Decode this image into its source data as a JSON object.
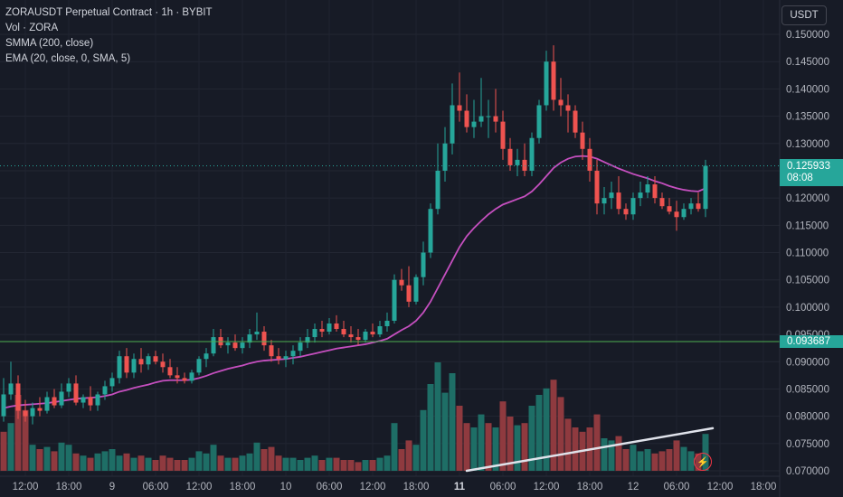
{
  "legend": {
    "title": "ZORAUSDT Perpetual Contract · 1h · BYBIT",
    "volume": "Vol · ZORA",
    "smma": "SMMA (200, close)",
    "ema": "EMA (20, close, 0, SMA, 5)"
  },
  "currency_button": "USDT",
  "last_price": {
    "value": "0.125933",
    "countdown": "08:08"
  },
  "line_level": "0.093687",
  "colors": {
    "background": "#171b26",
    "up": "#26a69a",
    "down": "#ef5350",
    "ma": "#c54fbf",
    "trendline": "#e0e3eb",
    "level_line": "#4caf50"
  },
  "icons": {
    "alert": "lightning-icon"
  },
  "chart_data": {
    "type": "candlestick",
    "price_axis": {
      "min": 0.0695,
      "max": 0.1525,
      "ticks": [
        "0.150000",
        "0.145000",
        "0.140000",
        "0.135000",
        "0.130000",
        "0.125000",
        "0.120000",
        "0.115000",
        "0.110000",
        "0.105000",
        "0.100000",
        "0.095000",
        "0.090000",
        "0.085000",
        "0.080000",
        "0.075000",
        "0.070000"
      ]
    },
    "time_axis": {
      "labels": [
        {
          "text": "12:00",
          "bar": 3
        },
        {
          "text": "18:00",
          "bar": 9
        },
        {
          "text": "9",
          "bar": 15,
          "bold": false
        },
        {
          "text": "06:00",
          "bar": 21
        },
        {
          "text": "12:00",
          "bar": 27
        },
        {
          "text": "18:00",
          "bar": 33
        },
        {
          "text": "10",
          "bar": 39
        },
        {
          "text": "06:00",
          "bar": 45
        },
        {
          "text": "12:00",
          "bar": 51
        },
        {
          "text": "18:00",
          "bar": 57
        },
        {
          "text": "11",
          "bar": 63,
          "bold": true
        },
        {
          "text": "06:00",
          "bar": 69
        },
        {
          "text": "12:00",
          "bar": 75
        },
        {
          "text": "18:00",
          "bar": 81
        },
        {
          "text": "12",
          "bar": 87
        },
        {
          "text": "06:00",
          "bar": 93
        },
        {
          "text": "12:00",
          "bar": 99
        },
        {
          "text": "18:00",
          "bar": 105
        }
      ]
    },
    "candles": [
      [
        0.08,
        0.087,
        0.079,
        0.084
      ],
      [
        0.084,
        0.09,
        0.083,
        0.086
      ],
      [
        0.086,
        0.0875,
        0.0795,
        0.081
      ],
      [
        0.081,
        0.083,
        0.079,
        0.08
      ],
      [
        0.08,
        0.0825,
        0.0785,
        0.0815
      ],
      [
        0.0815,
        0.0835,
        0.08,
        0.081
      ],
      [
        0.081,
        0.0845,
        0.0805,
        0.0835
      ],
      [
        0.0835,
        0.085,
        0.0815,
        0.082
      ],
      [
        0.082,
        0.086,
        0.0815,
        0.0845
      ],
      [
        0.0845,
        0.087,
        0.0835,
        0.086
      ],
      [
        0.086,
        0.0875,
        0.082,
        0.0825
      ],
      [
        0.0825,
        0.084,
        0.0815,
        0.0835
      ],
      [
        0.0835,
        0.0855,
        0.081,
        0.082
      ],
      [
        0.082,
        0.0845,
        0.081,
        0.084
      ],
      [
        0.084,
        0.0865,
        0.083,
        0.0855
      ],
      [
        0.0855,
        0.088,
        0.0845,
        0.087
      ],
      [
        0.087,
        0.092,
        0.086,
        0.091
      ],
      [
        0.091,
        0.0925,
        0.087,
        0.088
      ],
      [
        0.088,
        0.0915,
        0.087,
        0.0905
      ],
      [
        0.0905,
        0.0925,
        0.088,
        0.0895
      ],
      [
        0.0895,
        0.0915,
        0.0885,
        0.091
      ],
      [
        0.091,
        0.092,
        0.0895,
        0.09
      ],
      [
        0.09,
        0.0915,
        0.088,
        0.089
      ],
      [
        0.089,
        0.0905,
        0.087,
        0.0875
      ],
      [
        0.0875,
        0.089,
        0.086,
        0.087
      ],
      [
        0.087,
        0.088,
        0.086,
        0.0865
      ],
      [
        0.0865,
        0.0885,
        0.086,
        0.088
      ],
      [
        0.088,
        0.091,
        0.0875,
        0.0905
      ],
      [
        0.0905,
        0.0925,
        0.089,
        0.0915
      ],
      [
        0.0915,
        0.096,
        0.091,
        0.0945
      ],
      [
        0.0945,
        0.096,
        0.0925,
        0.093
      ],
      [
        0.093,
        0.0945,
        0.0915,
        0.0935
      ],
      [
        0.0935,
        0.095,
        0.092,
        0.0925
      ],
      [
        0.0925,
        0.0945,
        0.0915,
        0.0935
      ],
      [
        0.0935,
        0.096,
        0.0925,
        0.095
      ],
      [
        0.095,
        0.099,
        0.094,
        0.0955
      ],
      [
        0.0955,
        0.0965,
        0.092,
        0.093
      ],
      [
        0.093,
        0.094,
        0.09,
        0.091
      ],
      [
        0.091,
        0.0925,
        0.0895,
        0.0905
      ],
      [
        0.0905,
        0.092,
        0.089,
        0.091
      ],
      [
        0.091,
        0.093,
        0.0895,
        0.092
      ],
      [
        0.092,
        0.0945,
        0.091,
        0.0935
      ],
      [
        0.0935,
        0.096,
        0.0925,
        0.0945
      ],
      [
        0.0945,
        0.097,
        0.0935,
        0.096
      ],
      [
        0.096,
        0.0975,
        0.0945,
        0.0955
      ],
      [
        0.0955,
        0.098,
        0.095,
        0.097
      ],
      [
        0.097,
        0.0985,
        0.0955,
        0.096
      ],
      [
        0.096,
        0.0975,
        0.0945,
        0.095
      ],
      [
        0.095,
        0.0965,
        0.0935,
        0.0945
      ],
      [
        0.0945,
        0.096,
        0.093,
        0.094
      ],
      [
        0.094,
        0.096,
        0.0935,
        0.0955
      ],
      [
        0.0955,
        0.097,
        0.0945,
        0.095
      ],
      [
        0.095,
        0.0975,
        0.0945,
        0.0965
      ],
      [
        0.0965,
        0.099,
        0.0955,
        0.0975
      ],
      [
        0.0975,
        0.106,
        0.097,
        0.105
      ],
      [
        0.105,
        0.107,
        0.103,
        0.104
      ],
      [
        0.104,
        0.1075,
        0.1,
        0.101
      ],
      [
        0.101,
        0.106,
        0.1005,
        0.1055
      ],
      [
        0.1055,
        0.112,
        0.104,
        0.11
      ],
      [
        0.11,
        0.119,
        0.109,
        0.118
      ],
      [
        0.118,
        0.13,
        0.117,
        0.125
      ],
      [
        0.125,
        0.133,
        0.123,
        0.13
      ],
      [
        0.13,
        0.141,
        0.128,
        0.137
      ],
      [
        0.137,
        0.143,
        0.134,
        0.136
      ],
      [
        0.136,
        0.139,
        0.132,
        0.133
      ],
      [
        0.133,
        0.138,
        0.131,
        0.134
      ],
      [
        0.134,
        0.142,
        0.133,
        0.135
      ],
      [
        0.135,
        0.138,
        0.131,
        0.135
      ],
      [
        0.135,
        0.14,
        0.132,
        0.134
      ],
      [
        0.134,
        0.136,
        0.127,
        0.129
      ],
      [
        0.129,
        0.131,
        0.125,
        0.126
      ],
      [
        0.126,
        0.129,
        0.124,
        0.127
      ],
      [
        0.127,
        0.13,
        0.124,
        0.125
      ],
      [
        0.125,
        0.132,
        0.124,
        0.131
      ],
      [
        0.131,
        0.138,
        0.13,
        0.137
      ],
      [
        0.137,
        0.147,
        0.136,
        0.145
      ],
      [
        0.145,
        0.148,
        0.136,
        0.138
      ],
      [
        0.138,
        0.142,
        0.135,
        0.137
      ],
      [
        0.137,
        0.139,
        0.132,
        0.136
      ],
      [
        0.136,
        0.137,
        0.131,
        0.132
      ],
      [
        0.132,
        0.134,
        0.127,
        0.129
      ],
      [
        0.129,
        0.131,
        0.123,
        0.125
      ],
      [
        0.125,
        0.127,
        0.117,
        0.119
      ],
      [
        0.119,
        0.122,
        0.117,
        0.12
      ],
      [
        0.12,
        0.123,
        0.118,
        0.121
      ],
      [
        0.121,
        0.124,
        0.117,
        0.118
      ],
      [
        0.118,
        0.119,
        0.116,
        0.117
      ],
      [
        0.117,
        0.121,
        0.116,
        0.12
      ],
      [
        0.12,
        0.123,
        0.1185,
        0.121
      ],
      [
        0.121,
        0.124,
        0.12,
        0.1225
      ],
      [
        0.1225,
        0.124,
        0.119,
        0.12
      ],
      [
        0.12,
        0.121,
        0.118,
        0.1185
      ],
      [
        0.1185,
        0.12,
        0.117,
        0.1175
      ],
      [
        0.1175,
        0.1195,
        0.114,
        0.1165
      ],
      [
        0.1165,
        0.119,
        0.116,
        0.118
      ],
      [
        0.118,
        0.12,
        0.117,
        0.119
      ],
      [
        0.119,
        0.121,
        0.1175,
        0.118
      ],
      [
        0.118,
        0.127,
        0.1165,
        0.1259
      ]
    ],
    "volume": [
      {
        "v": 0.18,
        "up": false
      },
      {
        "v": 0.22,
        "up": true
      },
      {
        "v": 0.35,
        "up": false
      },
      {
        "v": 0.28,
        "up": false
      },
      {
        "v": 0.12,
        "up": true
      },
      {
        "v": 0.1,
        "up": false
      },
      {
        "v": 0.11,
        "up": true
      },
      {
        "v": 0.09,
        "up": false
      },
      {
        "v": 0.13,
        "up": true
      },
      {
        "v": 0.12,
        "up": true
      },
      {
        "v": 0.08,
        "up": false
      },
      {
        "v": 0.07,
        "up": true
      },
      {
        "v": 0.06,
        "up": false
      },
      {
        "v": 0.08,
        "up": true
      },
      {
        "v": 0.09,
        "up": true
      },
      {
        "v": 0.1,
        "up": true
      },
      {
        "v": 0.07,
        "up": true
      },
      {
        "v": 0.08,
        "up": false
      },
      {
        "v": 0.06,
        "up": true
      },
      {
        "v": 0.07,
        "up": false
      },
      {
        "v": 0.06,
        "up": true
      },
      {
        "v": 0.05,
        "up": false
      },
      {
        "v": 0.07,
        "up": false
      },
      {
        "v": 0.06,
        "up": false
      },
      {
        "v": 0.05,
        "up": false
      },
      {
        "v": 0.05,
        "up": false
      },
      {
        "v": 0.06,
        "up": true
      },
      {
        "v": 0.09,
        "up": true
      },
      {
        "v": 0.08,
        "up": true
      },
      {
        "v": 0.12,
        "up": true
      },
      {
        "v": 0.07,
        "up": false
      },
      {
        "v": 0.06,
        "up": true
      },
      {
        "v": 0.06,
        "up": false
      },
      {
        "v": 0.07,
        "up": true
      },
      {
        "v": 0.08,
        "up": true
      },
      {
        "v": 0.13,
        "up": true
      },
      {
        "v": 0.1,
        "up": false
      },
      {
        "v": 0.11,
        "up": false
      },
      {
        "v": 0.07,
        "up": false
      },
      {
        "v": 0.06,
        "up": true
      },
      {
        "v": 0.06,
        "up": true
      },
      {
        "v": 0.05,
        "up": true
      },
      {
        "v": 0.06,
        "up": true
      },
      {
        "v": 0.07,
        "up": true
      },
      {
        "v": 0.05,
        "up": false
      },
      {
        "v": 0.06,
        "up": true
      },
      {
        "v": 0.06,
        "up": false
      },
      {
        "v": 0.05,
        "up": false
      },
      {
        "v": 0.05,
        "up": false
      },
      {
        "v": 0.04,
        "up": false
      },
      {
        "v": 0.05,
        "up": true
      },
      {
        "v": 0.05,
        "up": false
      },
      {
        "v": 0.06,
        "up": true
      },
      {
        "v": 0.07,
        "up": true
      },
      {
        "v": 0.22,
        "up": true
      },
      {
        "v": 0.1,
        "up": false
      },
      {
        "v": 0.14,
        "up": false
      },
      {
        "v": 0.12,
        "up": true
      },
      {
        "v": 0.28,
        "up": true
      },
      {
        "v": 0.4,
        "up": true
      },
      {
        "v": 0.5,
        "up": true
      },
      {
        "v": 0.36,
        "up": true
      },
      {
        "v": 0.45,
        "up": true
      },
      {
        "v": 0.3,
        "up": false
      },
      {
        "v": 0.22,
        "up": false
      },
      {
        "v": 0.2,
        "up": true
      },
      {
        "v": 0.26,
        "up": true
      },
      {
        "v": 0.22,
        "up": false
      },
      {
        "v": 0.2,
        "up": true
      },
      {
        "v": 0.32,
        "up": false
      },
      {
        "v": 0.25,
        "up": false
      },
      {
        "v": 0.21,
        "up": true
      },
      {
        "v": 0.22,
        "up": false
      },
      {
        "v": 0.3,
        "up": true
      },
      {
        "v": 0.35,
        "up": true
      },
      {
        "v": 0.38,
        "up": true
      },
      {
        "v": 0.42,
        "up": false
      },
      {
        "v": 0.34,
        "up": false
      },
      {
        "v": 0.24,
        "up": false
      },
      {
        "v": 0.2,
        "up": false
      },
      {
        "v": 0.18,
        "up": false
      },
      {
        "v": 0.2,
        "up": false
      },
      {
        "v": 0.26,
        "up": false
      },
      {
        "v": 0.15,
        "up": true
      },
      {
        "v": 0.14,
        "up": true
      },
      {
        "v": 0.16,
        "up": false
      },
      {
        "v": 0.1,
        "up": false
      },
      {
        "v": 0.12,
        "up": true
      },
      {
        "v": 0.09,
        "up": true
      },
      {
        "v": 0.1,
        "up": true
      },
      {
        "v": 0.08,
        "up": false
      },
      {
        "v": 0.09,
        "up": false
      },
      {
        "v": 0.1,
        "up": false
      },
      {
        "v": 0.14,
        "up": false
      },
      {
        "v": 0.11,
        "up": true
      },
      {
        "v": 0.09,
        "up": true
      },
      {
        "v": 0.08,
        "up": false
      },
      {
        "v": 0.17,
        "up": true
      }
    ],
    "moving_average": [
      0.0815,
      0.0818,
      0.082,
      0.0821,
      0.0822,
      0.0823,
      0.0824,
      0.0826,
      0.0828,
      0.083,
      0.0832,
      0.0833,
      0.0834,
      0.0835,
      0.0837,
      0.084,
      0.0845,
      0.0848,
      0.0852,
      0.0855,
      0.0858,
      0.0862,
      0.0865,
      0.0866,
      0.0866,
      0.0866,
      0.0867,
      0.087,
      0.0874,
      0.0879,
      0.0883,
      0.0887,
      0.089,
      0.0893,
      0.0897,
      0.09,
      0.0902,
      0.0903,
      0.0904,
      0.0905,
      0.0907,
      0.0909,
      0.0912,
      0.0915,
      0.0918,
      0.0921,
      0.0924,
      0.0926,
      0.0928,
      0.093,
      0.0932,
      0.0935,
      0.0938,
      0.0942,
      0.095,
      0.0958,
      0.0965,
      0.0975,
      0.099,
      0.101,
      0.1035,
      0.106,
      0.1085,
      0.111,
      0.113,
      0.1145,
      0.1158,
      0.117,
      0.118,
      0.1188,
      0.1193,
      0.1198,
      0.1203,
      0.1212,
      0.1225,
      0.124,
      0.1255,
      0.1265,
      0.1272,
      0.1276,
      0.1277,
      0.1276,
      0.1272,
      0.1266,
      0.126,
      0.1254,
      0.1249,
      0.1244,
      0.124,
      0.1236,
      0.1231,
      0.1227,
      0.1222,
      0.1218,
      0.1215,
      0.1213,
      0.1212,
      0.1218
    ],
    "trendline": {
      "from": {
        "bar": 64,
        "price": 0.07
      },
      "to": {
        "bar": 98,
        "price": 0.0778
      }
    },
    "horizontal_line": 0.093687
  }
}
